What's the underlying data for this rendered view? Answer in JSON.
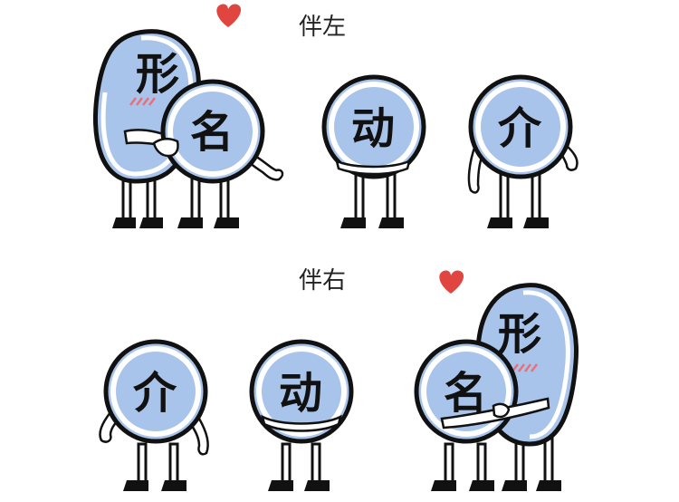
{
  "sections": [
    {
      "title": "伴左"
    },
    {
      "title": "伴右"
    }
  ],
  "characters": {
    "adjective": "形",
    "noun": "名",
    "verb": "动",
    "preposition": "介"
  },
  "colors": {
    "body_blue": "#a8c4ea",
    "outline": "#111111",
    "heart_red": "#e0453f",
    "blush": "#e8707a"
  },
  "icons": [
    "heart-icon"
  ]
}
